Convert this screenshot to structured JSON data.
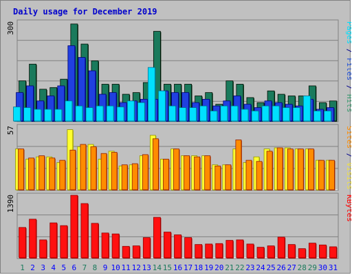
{
  "chart_data": [
    {
      "type": "bar",
      "title": "Daily usage for December 2019",
      "ylabel_parts": [
        {
          "text": "Pages",
          "color": "#00e0ff"
        },
        {
          "text": " / ",
          "color": "#00008b"
        },
        {
          "text": "Files",
          "color": "#2050d8"
        },
        {
          "text": " / ",
          "color": "#00008b"
        },
        {
          "text": "Hits",
          "color": "#3a9a70"
        }
      ],
      "ymax_label": "300",
      "ylim": [
        0,
        300
      ],
      "categories": [
        "1",
        "2",
        "3",
        "4",
        "5",
        "6",
        "7",
        "8",
        "9",
        "10",
        "11",
        "12",
        "13",
        "14",
        "15",
        "16",
        "17",
        "18",
        "19",
        "20",
        "21",
        "22",
        "23",
        "24",
        "25",
        "26",
        "27",
        "28",
        "29",
        "30",
        "31"
      ],
      "weekend_categories": [
        "1",
        "7",
        "8",
        "14",
        "15",
        "21",
        "22",
        "28",
        "29"
      ],
      "series": [
        {
          "name": "Hits",
          "color": "#1a7a5c",
          "values": [
            120,
            170,
            95,
            100,
            125,
            290,
            230,
            180,
            110,
            110,
            80,
            85,
            115,
            268,
            110,
            110,
            110,
            75,
            85,
            50,
            120,
            110,
            70,
            55,
            90,
            80,
            75,
            75,
            105,
            55,
            60
          ]
        },
        {
          "name": "Files",
          "color": "#2040e0",
          "values": [
            85,
            105,
            60,
            75,
            105,
            225,
            190,
            150,
            80,
            85,
            55,
            60,
            65,
            65,
            90,
            85,
            85,
            55,
            65,
            45,
            60,
            75,
            50,
            40,
            60,
            55,
            50,
            45,
            65,
            35,
            40
          ]
        },
        {
          "name": "Pages",
          "color": "#00e0ff",
          "values": [
            42,
            40,
            35,
            35,
            35,
            60,
            45,
            40,
            45,
            45,
            42,
            60,
            55,
            160,
            90,
            45,
            40,
            40,
            45,
            30,
            45,
            45,
            35,
            30,
            45,
            45,
            40,
            40,
            75,
            30,
            30
          ]
        }
      ]
    },
    {
      "type": "bar",
      "ylabel_parts": [
        {
          "text": "Sites",
          "color": "#ff8c00"
        },
        {
          "text": " / ",
          "color": "#00008b"
        },
        {
          "text": "Visits",
          "color": "#f0e040"
        }
      ],
      "ymax_label": "57",
      "ylim": [
        0,
        57
      ],
      "categories": [
        "1",
        "2",
        "3",
        "4",
        "5",
        "6",
        "7",
        "8",
        "9",
        "10",
        "11",
        "12",
        "13",
        "14",
        "15",
        "16",
        "17",
        "18",
        "19",
        "20",
        "21",
        "22",
        "23",
        "24",
        "25",
        "26",
        "27",
        "28",
        "29",
        "30",
        "31"
      ],
      "series": [
        {
          "name": "Visits",
          "color": "#ffff30",
          "values": [
            36,
            27,
            29,
            29,
            24,
            53,
            38,
            40,
            27,
            34,
            21,
            22,
            30,
            48,
            27,
            36,
            30,
            30,
            30,
            22,
            22,
            36,
            24,
            29,
            36,
            37,
            37,
            36,
            36,
            26,
            26
          ]
        },
        {
          "name": "Sites",
          "color": "#ff8c00",
          "values": [
            36,
            28,
            30,
            28,
            26,
            35,
            40,
            38,
            32,
            33,
            22,
            23,
            31,
            45,
            27,
            36,
            30,
            29,
            30,
            21,
            22,
            44,
            26,
            25,
            34,
            37,
            36,
            36,
            36,
            26,
            26
          ]
        }
      ]
    },
    {
      "type": "bar",
      "ylabel_parts": [
        {
          "text": "KBytes",
          "color": "#ff0000"
        }
      ],
      "ymax_label": "1390",
      "ylim": [
        0,
        1390
      ],
      "categories": [
        "1",
        "2",
        "3",
        "4",
        "5",
        "6",
        "7",
        "8",
        "9",
        "10",
        "11",
        "12",
        "13",
        "14",
        "15",
        "16",
        "17",
        "18",
        "19",
        "20",
        "21",
        "22",
        "23",
        "24",
        "25",
        "26",
        "27",
        "28",
        "29",
        "30",
        "31"
      ],
      "series": [
        {
          "name": "KBytes",
          "color": "#ff1010",
          "values": [
            660,
            840,
            390,
            760,
            700,
            1360,
            1180,
            750,
            540,
            520,
            250,
            260,
            440,
            880,
            560,
            500,
            440,
            290,
            300,
            310,
            380,
            390,
            300,
            230,
            260,
            450,
            290,
            200,
            320,
            280,
            240
          ]
        }
      ]
    }
  ],
  "colors": {
    "background": "#c0c0c0",
    "plot_background": "#c0c0c0",
    "title": "#0000cc",
    "weekday_label": "#0000ff",
    "weekend_label": "#1a7a5c"
  }
}
